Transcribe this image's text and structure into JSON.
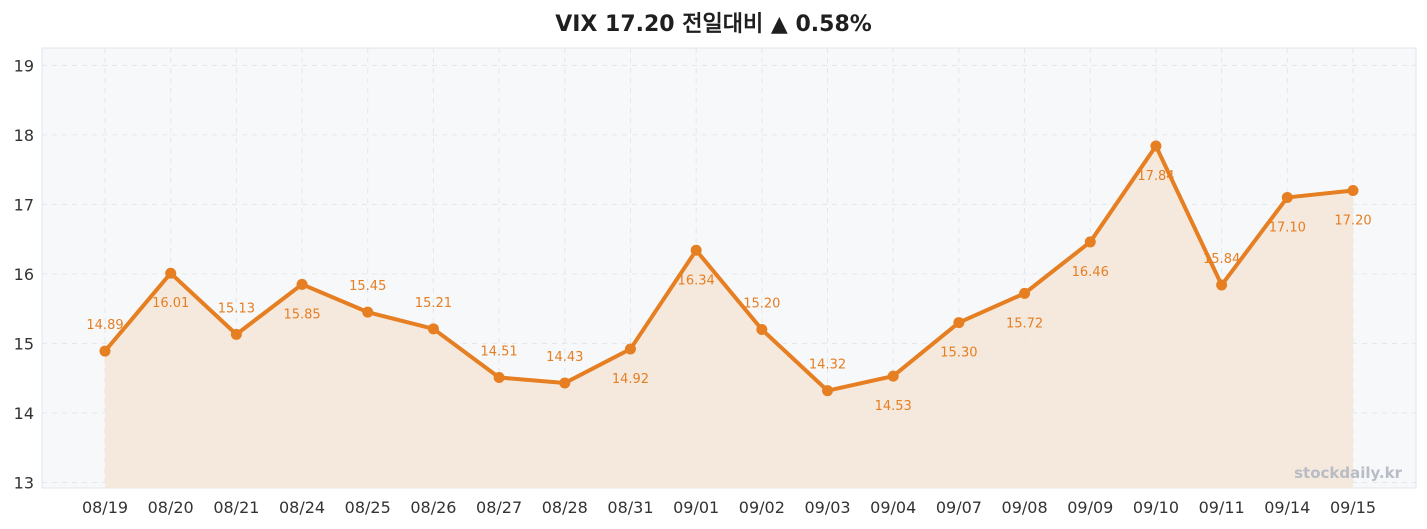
{
  "chart_data": {
    "type": "line",
    "title": "VIX 17.20 전일대비 ▲ 0.58%",
    "categories": [
      "08/19",
      "08/20",
      "08/21",
      "08/24",
      "08/25",
      "08/26",
      "08/27",
      "08/28",
      "08/31",
      "09/01",
      "09/02",
      "09/03",
      "09/04",
      "09/07",
      "09/08",
      "09/09",
      "09/10",
      "09/11",
      "09/14",
      "09/15"
    ],
    "series": [
      {
        "values": [
          14.89,
          16.01,
          15.13,
          15.85,
          15.45,
          15.21,
          14.51,
          14.43,
          14.92,
          16.34,
          15.2,
          14.32,
          14.53,
          15.3,
          15.72,
          16.46,
          17.84,
          15.84,
          17.1,
          17.2
        ]
      }
    ],
    "data_labels": [
      "14.89",
      "16.01",
      "15.13",
      "15.85",
      "15.45",
      "15.21",
      "14.51",
      "14.43",
      "14.92",
      "16.34",
      "15.20",
      "14.32",
      "14.53",
      "15.30",
      "15.72",
      "16.46",
      "17.84",
      "15.84",
      "17.10",
      "17.20"
    ],
    "y_ticks": [
      "13",
      "14",
      "15",
      "16",
      "17",
      "18",
      "19"
    ],
    "ylim": [
      12.92,
      19.25
    ],
    "grid": true,
    "area_fill": true,
    "line_color": "#e67e22",
    "fill_color": "#f5e6d8",
    "plot_bg": "#f7f8fa",
    "watermark": "stockdaily.kr"
  }
}
